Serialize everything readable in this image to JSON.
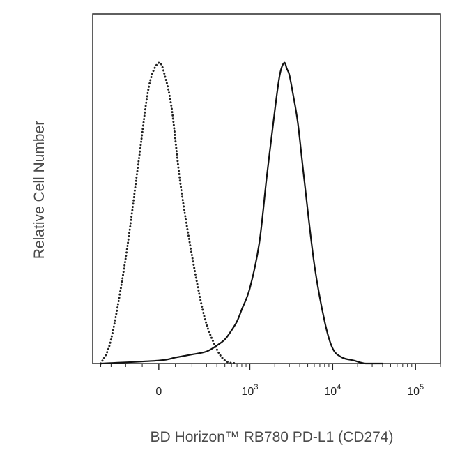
{
  "chart_data": {
    "type": "line",
    "title": "",
    "xlabel": "BD Horizon™ RB780 PD-L1 (CD274)",
    "ylabel": "Relative Cell Number",
    "x_scale": "biexponential",
    "xlim": [
      -500,
      200000
    ],
    "ylim": [
      0,
      1
    ],
    "grid": false,
    "legend": "none",
    "x_ticks": [
      {
        "value": 0,
        "label": "0",
        "exp": ""
      },
      {
        "value": 1000,
        "label": "10",
        "exp": "3"
      },
      {
        "value": 10000,
        "label": "10",
        "exp": "4"
      },
      {
        "value": 100000,
        "label": "10",
        "exp": "5"
      }
    ],
    "series": [
      {
        "style": "dotted",
        "color": "#222222",
        "x": [
          -400,
          -300,
          -200,
          -120,
          -60,
          0,
          40,
          80,
          130,
          200,
          280,
          380,
          500,
          700
        ],
        "y": [
          0.0,
          0.08,
          0.35,
          0.68,
          0.92,
          1.0,
          0.95,
          0.84,
          0.6,
          0.36,
          0.16,
          0.06,
          0.01,
          0.0
        ]
      },
      {
        "style": "solid",
        "color": "#111111",
        "x": [
          -400,
          0,
          100,
          200,
          300,
          400,
          500,
          600,
          700,
          800,
          1000,
          1300,
          1600,
          2000,
          2300,
          2600,
          2800,
          3000,
          3300,
          3800,
          4500,
          6000,
          8000,
          10000,
          13000,
          18000,
          25000,
          40000
        ],
        "y": [
          0.0,
          0.01,
          0.02,
          0.03,
          0.04,
          0.06,
          0.08,
          0.11,
          0.14,
          0.18,
          0.25,
          0.4,
          0.62,
          0.84,
          0.96,
          1.0,
          0.98,
          0.96,
          0.9,
          0.8,
          0.62,
          0.33,
          0.14,
          0.05,
          0.02,
          0.01,
          0.0,
          0.0
        ]
      }
    ]
  }
}
